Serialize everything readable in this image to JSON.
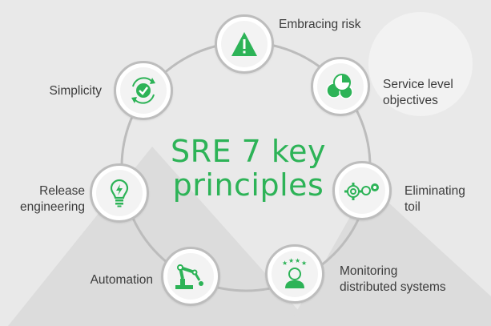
{
  "title": "SRE 7 key\nprinciples",
  "accent_color": "#2db357",
  "principles": [
    {
      "label": "Embracing risk",
      "icon": "warning-triangle-icon"
    },
    {
      "label": "Service level\nobjectives",
      "icon": "pie-chart-icon"
    },
    {
      "label": "Eliminating\ntoil",
      "icon": "gears-icon"
    },
    {
      "label": "Monitoring\ndistributed systems",
      "icon": "person-stars-icon"
    },
    {
      "label": "Automation",
      "icon": "robot-arm-icon"
    },
    {
      "label": "Release\nengineering",
      "icon": "lightbulb-icon"
    },
    {
      "label": "Simplicity",
      "icon": "check-cycle-icon"
    }
  ]
}
